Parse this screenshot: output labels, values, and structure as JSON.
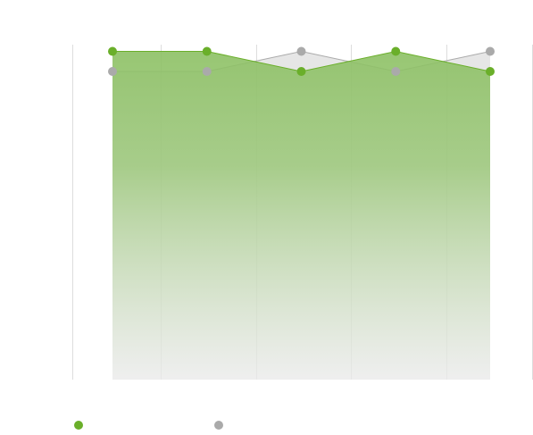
{
  "chart_data": {
    "type": "area",
    "categories": [
      null,
      null,
      null,
      null,
      null
    ],
    "series": [
      {
        "color": "#6aaf2a",
        "values": [
          98,
          98,
          92,
          98,
          92
        ]
      },
      {
        "color": "#aaaaaa",
        "values": [
          92,
          92,
          98,
          92,
          98
        ]
      }
    ],
    "ylim": [
      0,
      100
    ]
  }
}
